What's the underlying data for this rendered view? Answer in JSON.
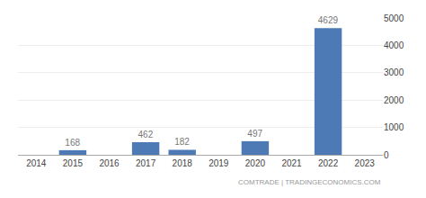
{
  "chart_data": {
    "type": "bar",
    "x": [
      2015,
      2017,
      2018,
      2020,
      2022
    ],
    "values": [
      168,
      462,
      182,
      497,
      4629
    ],
    "color": "#4d7ab5",
    "xlim": [
      2013.5,
      2023.5
    ],
    "xticks": [
      2014,
      2015,
      2016,
      2017,
      2018,
      2019,
      2020,
      2021,
      2022,
      2023
    ],
    "ylim": [
      0,
      5000
    ],
    "yticks": [
      0,
      1000,
      2000,
      3000,
      4000,
      5000
    ],
    "grid": "y",
    "data_labels": true,
    "annotations": [
      "COMTRADE | TRADINGECONOMICS.COM"
    ]
  }
}
